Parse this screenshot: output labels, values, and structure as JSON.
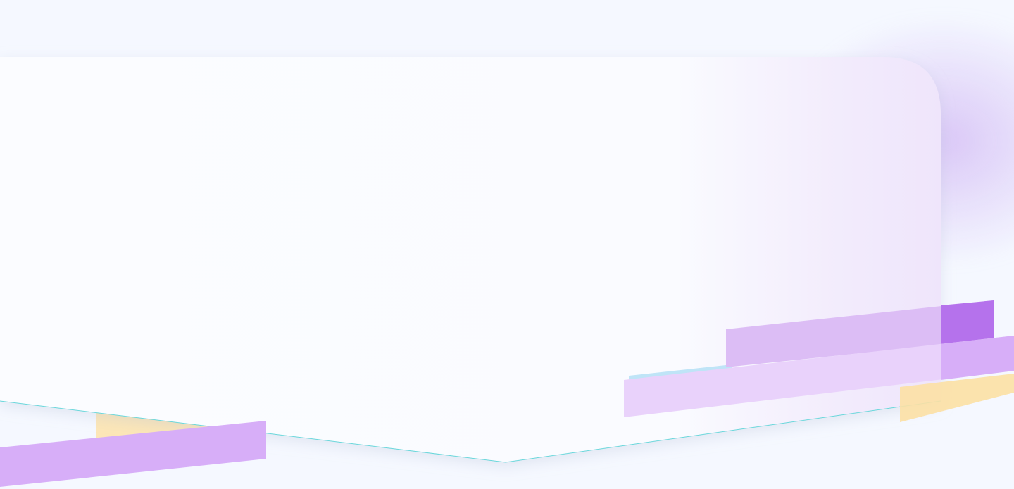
{
  "colors": {
    "page_background": "#f5f8ff",
    "panel_fill": "#fafcff",
    "panel_outline": "#6ad7db",
    "panel_outline_accent": "#f2b48a",
    "violet_light": "#e9d2fb",
    "violet": "#d7aef8",
    "violet_mid": "#dcbdf5",
    "violet_deep": "#b572ec",
    "amber_light": "#fdeecf",
    "amber": "#fce0a4",
    "sky": "#bfe4f7"
  }
}
